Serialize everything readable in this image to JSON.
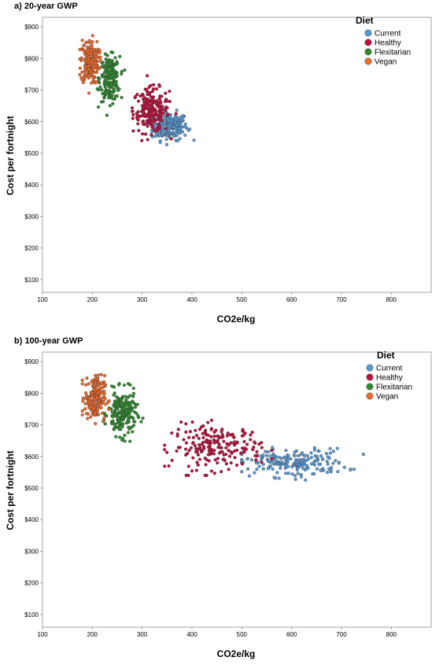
{
  "legend": {
    "title": "Diet",
    "entries": [
      {
        "name": "Current",
        "color": "#5b9bd5"
      },
      {
        "name": "Healthy",
        "color": "#c00f3c"
      },
      {
        "name": "Flexitarian",
        "color": "#2e8b2e"
      },
      {
        "name": "Vegan",
        "color": "#ee6a2c"
      }
    ]
  },
  "chart_data": [
    {
      "type": "scatter",
      "title": "a) 20-year GWP",
      "xlabel": "CO2e/kg",
      "ylabel": "Cost per fortnight",
      "xlim": [
        100,
        880
      ],
      "ylim": [
        60,
        930
      ],
      "xticks": [
        100,
        200,
        300,
        400,
        500,
        600,
        700,
        800
      ],
      "yticks": [
        100,
        200,
        300,
        400,
        500,
        600,
        700,
        800,
        900
      ],
      "ytick_labels": [
        "$100",
        "$200",
        "$300",
        "$400",
        "$500",
        "$600",
        "$700",
        "$800",
        "$900"
      ],
      "grid": false,
      "legend_position": "top-right",
      "series": [
        {
          "name": "Current",
          "x_center": 355,
          "x_spread": 18,
          "y_center": 585,
          "y_spread": 22,
          "x_range": [
            320,
            425
          ],
          "y_range": [
            525,
            670
          ],
          "n": 200
        },
        {
          "name": "Healthy",
          "x_center": 318,
          "x_spread": 18,
          "y_center": 635,
          "y_spread": 35,
          "x_range": [
            280,
            390
          ],
          "y_range": [
            540,
            745
          ],
          "n": 200
        },
        {
          "name": "Flexitarian",
          "x_center": 235,
          "x_spread": 10,
          "y_center": 735,
          "y_spread": 35,
          "x_range": [
            210,
            265
          ],
          "y_range": [
            620,
            820
          ],
          "n": 200
        },
        {
          "name": "Vegan",
          "x_center": 195,
          "x_spread": 9,
          "y_center": 790,
          "y_spread": 35,
          "x_range": [
            175,
            220
          ],
          "y_range": [
            650,
            875
          ],
          "n": 200
        }
      ]
    },
    {
      "type": "scatter",
      "title": "b) 100-year GWP",
      "xlabel": "CO2e/kg",
      "ylabel": "Cost per fortnight",
      "xlim": [
        100,
        880
      ],
      "ylim": [
        60,
        930
      ],
      "xticks": [
        100,
        200,
        300,
        400,
        500,
        600,
        700,
        800
      ],
      "yticks": [
        100,
        200,
        300,
        400,
        500,
        600,
        700,
        800,
        900
      ],
      "ytick_labels": [
        "$100",
        "$200",
        "$300",
        "$400",
        "$500",
        "$600",
        "$700",
        "$800",
        "$900"
      ],
      "grid": false,
      "legend_position": "top-right",
      "series": [
        {
          "name": "Current",
          "x_center": 600,
          "x_spread": 55,
          "y_center": 580,
          "y_spread": 22,
          "x_range": [
            500,
            770
          ],
          "y_range": [
            525,
            690
          ],
          "n": 200
        },
        {
          "name": "Healthy",
          "x_center": 450,
          "x_spread": 45,
          "y_center": 630,
          "y_spread": 35,
          "x_range": [
            345,
            560
          ],
          "y_range": [
            540,
            735
          ],
          "n": 200
        },
        {
          "name": "Flexitarian",
          "x_center": 260,
          "x_spread": 14,
          "y_center": 735,
          "y_spread": 35,
          "x_range": [
            220,
            310
          ],
          "y_range": [
            630,
            830
          ],
          "n": 200
        },
        {
          "name": "Vegan",
          "x_center": 205,
          "x_spread": 10,
          "y_center": 785,
          "y_spread": 35,
          "x_range": [
            180,
            235
          ],
          "y_range": [
            650,
            875
          ],
          "n": 200
        }
      ]
    }
  ]
}
